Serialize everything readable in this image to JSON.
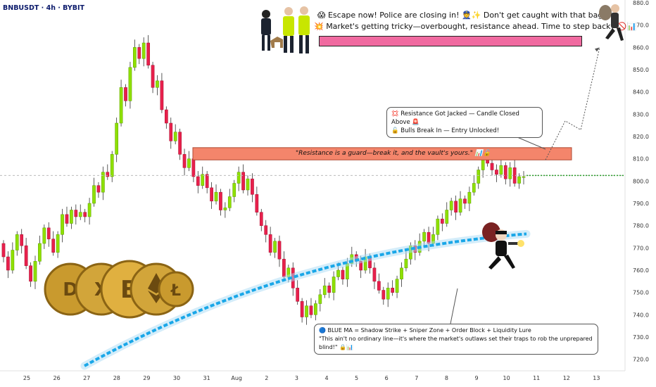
{
  "header": {
    "symbol": "BNBUSDT · 4h · BYBIT"
  },
  "colors": {
    "up": "#8ee000",
    "down": "#e8204c",
    "ma": "#1aa7e8",
    "resistance": "#f4856b",
    "pink": "#f06aa0",
    "target": "#2ca02c"
  },
  "banner": {
    "line1": "😱 Escape now! Police are closing in! 👮✨ Don't get caught with that bag.",
    "line2": "💥 Market's getting tricky—overbought, resistance ahead. Time to step back? 🚫📊"
  },
  "resistance_label": "\"Resistance is a guard—break it, and the vault's yours.\" 📊🔓",
  "callout_top": {
    "line1": "💢 Resistance Got Jacked — Candle Closed Above 🚨",
    "line2": "🔓 Bulls Break In — Entry Unlocked!"
  },
  "callout_bottom": {
    "line1": "🔵 BLUE MA = Shadow Strike + Sniper Zone + Order Block + Liquidity Lure",
    "line2": "\"This ain't no ordinary line—it's where the market's outlaws set their traps to rob the unprepared blind!\" 🔒📊"
  },
  "coins": [
    "dash-coin-icon",
    "ripple-coin-icon",
    "bitcoin-coin-icon",
    "ethereum-coin-icon",
    "litecoin-coin-icon"
  ],
  "chart_data": {
    "type": "candlestick",
    "symbol": "BNBUSDT",
    "timeframe": "4h",
    "exchange": "BYBIT",
    "ylim": [
      718,
      880
    ],
    "y_ticks": [
      "720.0",
      "730.0",
      "740.0",
      "750.0",
      "760.0",
      "770.0",
      "780.0",
      "790.0",
      "800.0",
      "810.0",
      "820.0",
      "830.0",
      "840.0",
      "850.0",
      "860.0",
      "870.0",
      "880.0"
    ],
    "x_ticks": [
      "25",
      "26",
      "27",
      "28",
      "29",
      "30",
      "31",
      "Aug",
      "2",
      "3",
      "4",
      "5",
      "6",
      "7",
      "8",
      "9",
      "10",
      "11",
      "12",
      "13"
    ],
    "candles": [
      [
        772,
        766
      ],
      [
        766,
        760
      ],
      [
        760,
        769
      ],
      [
        769,
        776
      ],
      [
        776,
        771
      ],
      [
        771,
        762
      ],
      [
        762,
        755
      ],
      [
        755,
        764
      ],
      [
        764,
        772
      ],
      [
        772,
        779
      ],
      [
        779,
        774
      ],
      [
        774,
        768
      ],
      [
        768,
        776
      ],
      [
        776,
        785
      ],
      [
        785,
        781
      ],
      [
        781,
        787
      ],
      [
        787,
        784
      ],
      [
        784,
        786
      ],
      [
        786,
        784
      ],
      [
        784,
        790
      ],
      [
        790,
        798
      ],
      [
        798,
        795
      ],
      [
        795,
        804
      ],
      [
        804,
        802
      ],
      [
        802,
        812
      ],
      [
        812,
        826
      ],
      [
        826,
        842
      ],
      [
        842,
        836
      ],
      [
        836,
        851
      ],
      [
        851,
        860
      ],
      [
        860,
        855
      ],
      [
        855,
        862
      ],
      [
        862,
        852
      ],
      [
        852,
        842
      ],
      [
        842,
        845
      ],
      [
        845,
        832
      ],
      [
        832,
        826
      ],
      [
        826,
        818
      ],
      [
        818,
        822
      ],
      [
        822,
        812
      ],
      [
        812,
        806
      ],
      [
        806,
        810
      ],
      [
        810,
        802
      ],
      [
        802,
        798
      ],
      [
        798,
        803
      ],
      [
        803,
        797
      ],
      [
        797,
        791
      ],
      [
        791,
        795
      ],
      [
        795,
        787
      ],
      [
        787,
        788
      ],
      [
        788,
        793
      ],
      [
        793,
        799
      ],
      [
        799,
        804
      ],
      [
        804,
        796
      ],
      [
        796,
        801
      ],
      [
        801,
        794
      ],
      [
        794,
        786
      ],
      [
        786,
        780
      ],
      [
        780,
        776
      ],
      [
        776,
        768
      ],
      [
        768,
        773
      ],
      [
        773,
        765
      ],
      [
        765,
        757
      ],
      [
        757,
        761
      ],
      [
        761,
        752
      ],
      [
        752,
        746
      ],
      [
        746,
        739
      ],
      [
        739,
        744
      ],
      [
        744,
        740
      ],
      [
        740,
        745
      ],
      [
        745,
        749
      ],
      [
        749,
        753
      ],
      [
        753,
        750
      ],
      [
        750,
        757
      ],
      [
        757,
        760
      ],
      [
        760,
        756
      ],
      [
        756,
        763
      ],
      [
        763,
        767
      ],
      [
        767,
        764
      ],
      [
        764,
        760
      ],
      [
        760,
        766
      ],
      [
        766,
        761
      ],
      [
        761,
        755
      ],
      [
        755,
        751
      ],
      [
        751,
        747
      ],
      [
        747,
        752
      ],
      [
        752,
        750
      ],
      [
        750,
        756
      ],
      [
        756,
        761
      ],
      [
        761,
        765
      ],
      [
        765,
        771
      ],
      [
        771,
        768
      ],
      [
        768,
        773
      ],
      [
        773,
        777
      ],
      [
        777,
        772
      ],
      [
        772,
        776
      ],
      [
        776,
        783
      ],
      [
        783,
        781
      ],
      [
        781,
        787
      ],
      [
        787,
        791
      ],
      [
        791,
        786
      ],
      [
        786,
        792
      ],
      [
        792,
        790
      ],
      [
        790,
        795
      ],
      [
        795,
        799
      ],
      [
        799,
        805
      ],
      [
        805,
        811
      ],
      [
        811,
        808
      ],
      [
        808,
        805
      ],
      [
        805,
        803
      ],
      [
        803,
        807
      ],
      [
        807,
        801
      ],
      [
        801,
        806
      ],
      [
        806,
        799
      ],
      [
        799,
        802
      ],
      [
        802,
        802
      ]
    ],
    "resistance_zone": [
      809.5,
      815
    ],
    "current_price": 802.5,
    "target_path": [
      [
        809.5,
        0
      ],
      [
        827,
        4
      ],
      [
        823,
        5.5
      ],
      [
        860,
        8
      ]
    ],
    "target_price": 860
  }
}
